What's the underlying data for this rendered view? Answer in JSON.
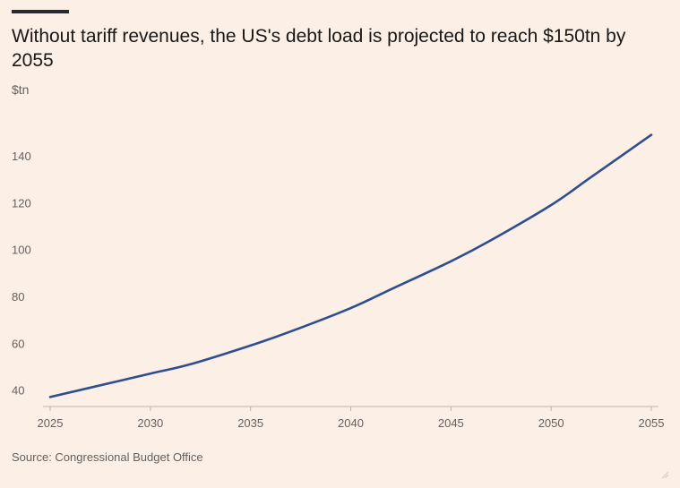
{
  "title": "Without tariff revenues, the US's debt load is projected to reach $150tn by 2055",
  "y_unit": "$tn",
  "source": "Source: Congressional Budget Office",
  "colors": {
    "background": "#fbefe6",
    "line": "#2f4e8f",
    "text": "#66605c"
  },
  "chart_data": {
    "type": "line",
    "title": "Without tariff revenues, the US's debt load is projected to reach $150tn by 2055",
    "xlabel": "",
    "ylabel": "$tn",
    "xlim": [
      2025,
      2055
    ],
    "ylim": [
      36,
      150
    ],
    "x_ticks": [
      2025,
      2030,
      2035,
      2040,
      2045,
      2050,
      2055
    ],
    "y_ticks": [
      40,
      60,
      80,
      100,
      120,
      140
    ],
    "grid": false,
    "legend": "none",
    "series": [
      {
        "x": [
          2025,
          2027,
          2030,
          2032,
          2035,
          2037,
          2040,
          2042,
          2045,
          2047,
          2050,
          2052,
          2055
        ],
        "values": [
          37,
          41,
          47,
          51,
          59,
          65,
          75,
          83,
          95,
          104,
          119,
          131,
          149
        ]
      }
    ]
  }
}
